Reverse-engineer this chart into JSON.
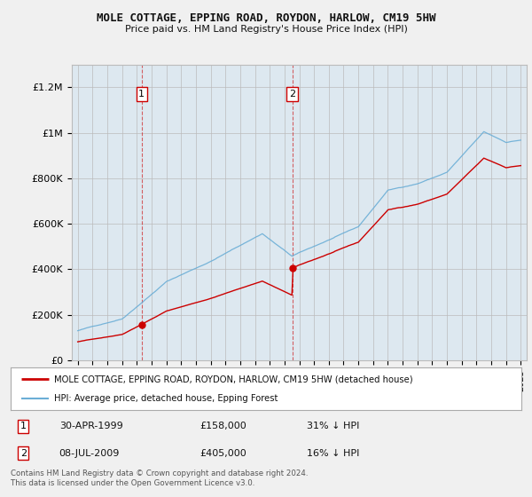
{
  "title": "MOLE COTTAGE, EPPING ROAD, ROYDON, HARLOW, CM19 5HW",
  "subtitle": "Price paid vs. HM Land Registry's House Price Index (HPI)",
  "legend_entry1": "MOLE COTTAGE, EPPING ROAD, ROYDON, HARLOW, CM19 5HW (detached house)",
  "legend_entry2": "HPI: Average price, detached house, Epping Forest",
  "transaction1_date": "30-APR-1999",
  "transaction1_price": "£158,000",
  "transaction1_hpi": "31% ↓ HPI",
  "transaction2_date": "08-JUL-2009",
  "transaction2_price": "£405,000",
  "transaction2_hpi": "16% ↓ HPI",
  "footer": "Contains HM Land Registry data © Crown copyright and database right 2024.\nThis data is licensed under the Open Government Licence v3.0.",
  "hpi_color": "#6baed6",
  "price_color": "#cc0000",
  "vline_color": "#cc0000",
  "bg_color": "#f0f0f0",
  "plot_bg_color": "#dde8f0",
  "grid_color": "#bbbbbb",
  "ylim": [
    0,
    1300000
  ],
  "yticks": [
    0,
    200000,
    400000,
    600000,
    800000,
    1000000,
    1200000
  ],
  "ytick_labels": [
    "£0",
    "£200K",
    "£400K",
    "£600K",
    "£800K",
    "£1M",
    "£1.2M"
  ],
  "t1_year": 1999.33,
  "t2_year": 2009.54,
  "price1": 158000,
  "price2": 405000
}
